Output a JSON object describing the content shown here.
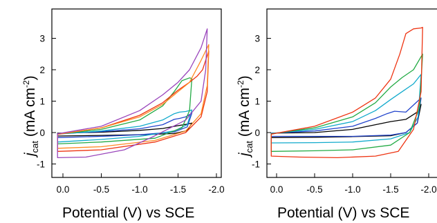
{
  "chart_data": [
    {
      "type": "line",
      "title": "",
      "xlabel": "Potential (V) vs SCE",
      "ylabel": {
        "main": "j",
        "subscript": "cat",
        "unit_open": " (mA cm",
        "unit_sup": "-2",
        "unit_close": ")"
      },
      "xlim": [
        0.0,
        -2.0
      ],
      "ylim": [
        -1.5,
        3.9
      ],
      "x_ticks": [
        "0.0",
        "-0.5",
        "-1.0",
        "-1.5",
        "-2.0"
      ],
      "x_tick_values": [
        0.0,
        -0.5,
        -1.0,
        -1.5,
        -2.0
      ],
      "y_ticks": [
        "3",
        "2",
        "1",
        "0",
        "-1"
      ],
      "y_tick_values": [
        3,
        2,
        1,
        0,
        -1
      ],
      "grid": false,
      "series": [
        {
          "color": "#000000",
          "switch": -1.68,
          "top": [
            [
              0.07,
              -0.02
            ],
            [
              -0.5,
              0.01
            ],
            [
              -1.0,
              0.07
            ],
            [
              -1.3,
              0.13
            ],
            [
              -1.5,
              0.22
            ],
            [
              -1.6,
              0.26
            ],
            [
              -1.68,
              0.3
            ]
          ],
          "bottom": [
            [
              -1.68,
              0.3
            ],
            [
              -1.62,
              0.06
            ],
            [
              -1.45,
              -0.03
            ],
            [
              -1.0,
              -0.07
            ],
            [
              -0.5,
              -0.09
            ],
            [
              0.07,
              -0.11
            ]
          ]
        },
        {
          "color": "#2244cc",
          "switch": -1.68,
          "top": [
            [
              0.07,
              -0.04
            ],
            [
              -0.5,
              0.03
            ],
            [
              -1.0,
              0.12
            ],
            [
              -1.3,
              0.25
            ],
            [
              -1.45,
              0.42
            ],
            [
              -1.52,
              0.45
            ],
            [
              -1.6,
              0.5
            ],
            [
              -1.68,
              0.62
            ]
          ],
          "bottom": [
            [
              -1.68,
              0.62
            ],
            [
              -1.62,
              0.18
            ],
            [
              -1.45,
              0.02
            ],
            [
              -1.0,
              -0.07
            ],
            [
              -0.5,
              -0.12
            ],
            [
              0.07,
              -0.16
            ]
          ]
        },
        {
          "color": "#11aacc",
          "switch": -1.68,
          "top": [
            [
              0.07,
              -0.05
            ],
            [
              -0.5,
              0.05
            ],
            [
              -1.0,
              0.2
            ],
            [
              -1.3,
              0.4
            ],
            [
              -1.45,
              0.6
            ],
            [
              -1.52,
              0.65
            ],
            [
              -1.6,
              0.67
            ],
            [
              -1.68,
              0.72
            ]
          ],
          "bottom": [
            [
              -1.68,
              0.72
            ],
            [
              -1.62,
              0.25
            ],
            [
              -1.45,
              0.05
            ],
            [
              -1.0,
              -0.12
            ],
            [
              -0.5,
              -0.22
            ],
            [
              0.07,
              -0.3
            ]
          ]
        },
        {
          "color": "#22aa44",
          "switch": -1.68,
          "top": [
            [
              0.07,
              -0.05
            ],
            [
              -0.5,
              0.1
            ],
            [
              -1.0,
              0.4
            ],
            [
              -1.3,
              0.85
            ],
            [
              -1.45,
              1.3
            ],
            [
              -1.55,
              1.65
            ],
            [
              -1.65,
              1.74
            ],
            [
              -1.68,
              1.72
            ]
          ],
          "bottom": [
            [
              -1.68,
              1.72
            ],
            [
              -1.65,
              0.7
            ],
            [
              -1.55,
              0.15
            ],
            [
              -1.2,
              -0.18
            ],
            [
              -0.5,
              -0.3
            ],
            [
              0.07,
              -0.36
            ]
          ]
        },
        {
          "color": "#ee3311",
          "switch": -1.91,
          "top": [
            [
              0.07,
              -0.06
            ],
            [
              -0.5,
              0.15
            ],
            [
              -1.0,
              0.55
            ],
            [
              -1.3,
              0.95
            ],
            [
              -1.5,
              1.35
            ],
            [
              -1.65,
              1.6
            ],
            [
              -1.75,
              1.8
            ],
            [
              -1.82,
              2.0
            ],
            [
              -1.9,
              2.6
            ]
          ],
          "bottom": [
            [
              -1.9,
              2.6
            ],
            [
              -1.88,
              1.3
            ],
            [
              -1.8,
              0.5
            ],
            [
              -1.6,
              0.0
            ],
            [
              -1.2,
              -0.3
            ],
            [
              -0.5,
              -0.55
            ],
            [
              0.07,
              -0.6
            ]
          ]
        },
        {
          "color": "#ff8a22",
          "switch": -1.91,
          "top": [
            [
              0.07,
              -0.05
            ],
            [
              -0.5,
              0.15
            ],
            [
              -1.0,
              0.5
            ],
            [
              -1.3,
              0.9
            ],
            [
              -1.5,
              1.3
            ],
            [
              -1.65,
              1.6
            ],
            [
              -1.8,
              2.3
            ],
            [
              -1.9,
              2.8
            ]
          ],
          "bottom": [
            [
              -1.9,
              2.8
            ],
            [
              -1.88,
              1.5
            ],
            [
              -1.8,
              0.6
            ],
            [
              -1.6,
              0.05
            ],
            [
              -1.2,
              -0.25
            ],
            [
              -0.5,
              -0.45
            ],
            [
              0.07,
              -0.5
            ]
          ]
        },
        {
          "color": "#9944bb",
          "switch": -1.9,
          "top": [
            [
              0.07,
              -0.04
            ],
            [
              -0.5,
              0.2
            ],
            [
              -1.0,
              0.7
            ],
            [
              -1.3,
              1.2
            ],
            [
              -1.5,
              1.6
            ],
            [
              -1.65,
              2.0
            ],
            [
              -1.8,
              2.7
            ],
            [
              -1.88,
              3.3
            ]
          ],
          "bottom": [
            [
              -1.88,
              3.3
            ],
            [
              -1.86,
              2.0
            ],
            [
              -1.8,
              1.0
            ],
            [
              -1.6,
              0.4
            ],
            [
              -1.2,
              -0.1
            ],
            [
              -0.8,
              -0.55
            ],
            [
              -0.3,
              -0.78
            ],
            [
              0.07,
              -0.8
            ]
          ]
        }
      ]
    },
    {
      "type": "line",
      "title": "",
      "xlabel": "Potential (V) vs SCE",
      "ylabel": {
        "main": "j",
        "subscript": "cat",
        "unit_open": " (mA cm",
        "unit_sup": "-2",
        "unit_close": ")"
      },
      "xlim": [
        0.0,
        -2.0
      ],
      "ylim": [
        -1.5,
        3.9
      ],
      "x_ticks": [
        "0.0",
        "-0.5",
        "-1.0",
        "-1.5",
        "-2.0"
      ],
      "x_tick_values": [
        0.0,
        -0.5,
        -1.0,
        -1.5,
        -2.0
      ],
      "y_ticks": [
        "3",
        "2",
        "1",
        "0",
        "-1"
      ],
      "y_tick_values": [
        3,
        2,
        1,
        0,
        -1
      ],
      "grid": false,
      "series": [
        {
          "color": "#000000",
          "switch": -1.9,
          "top": [
            [
              0.07,
              -0.02
            ],
            [
              -0.5,
              0.0
            ],
            [
              -1.0,
              0.1
            ],
            [
              -1.3,
              0.25
            ],
            [
              -1.5,
              0.35
            ],
            [
              -1.7,
              0.42
            ],
            [
              -1.88,
              0.7
            ],
            [
              -1.9,
              0.9
            ]
          ],
          "bottom": [
            [
              -1.9,
              0.9
            ],
            [
              -1.85,
              0.3
            ],
            [
              -1.7,
              0.0
            ],
            [
              -1.5,
              -0.1
            ],
            [
              -1.0,
              -0.13
            ],
            [
              -0.5,
              -0.15
            ],
            [
              0.07,
              -0.16
            ]
          ]
        },
        {
          "color": "#2244cc",
          "switch": -1.9,
          "top": [
            [
              0.07,
              -0.02
            ],
            [
              -0.5,
              0.05
            ],
            [
              -1.0,
              0.2
            ],
            [
              -1.3,
              0.45
            ],
            [
              -1.45,
              0.6
            ],
            [
              -1.55,
              0.68
            ],
            [
              -1.7,
              0.65
            ],
            [
              -1.9,
              1.1
            ]
          ],
          "bottom": [
            [
              -1.9,
              1.1
            ],
            [
              -1.85,
              0.3
            ],
            [
              -1.7,
              0.0
            ],
            [
              -1.5,
              -0.08
            ],
            [
              -1.0,
              -0.12
            ],
            [
              -0.5,
              -0.12
            ],
            [
              0.07,
              -0.12
            ]
          ]
        },
        {
          "color": "#11aacc",
          "switch": -1.9,
          "top": [
            [
              0.07,
              -0.03
            ],
            [
              -0.5,
              0.1
            ],
            [
              -1.0,
              0.35
            ],
            [
              -1.3,
              0.7
            ],
            [
              -1.5,
              1.05
            ],
            [
              -1.65,
              1.3
            ],
            [
              -1.8,
              1.55
            ],
            [
              -1.9,
              1.85
            ]
          ],
          "bottom": [
            [
              -1.9,
              1.85
            ],
            [
              -1.86,
              0.5
            ],
            [
              -1.75,
              0.0
            ],
            [
              -1.5,
              -0.2
            ],
            [
              -1.0,
              -0.3
            ],
            [
              -0.5,
              -0.32
            ],
            [
              0.07,
              -0.33
            ]
          ]
        },
        {
          "color": "#22aa44",
          "switch": -1.92,
          "top": [
            [
              0.07,
              -0.04
            ],
            [
              -0.5,
              0.15
            ],
            [
              -1.0,
              0.5
            ],
            [
              -1.3,
              0.95
            ],
            [
              -1.5,
              1.45
            ],
            [
              -1.65,
              1.75
            ],
            [
              -1.8,
              2.0
            ],
            [
              -1.92,
              2.5
            ]
          ],
          "bottom": [
            [
              -1.92,
              2.5
            ],
            [
              -1.88,
              0.8
            ],
            [
              -1.75,
              0.0
            ],
            [
              -1.5,
              -0.4
            ],
            [
              -1.0,
              -0.55
            ],
            [
              -0.5,
              -0.58
            ],
            [
              0.07,
              -0.6
            ]
          ]
        },
        {
          "color": "#ee3311",
          "switch": -1.92,
          "top": [
            [
              0.07,
              -0.05
            ],
            [
              -0.5,
              0.2
            ],
            [
              -1.0,
              0.65
            ],
            [
              -1.3,
              1.1
            ],
            [
              -1.5,
              1.7
            ],
            [
              -1.62,
              2.5
            ],
            [
              -1.7,
              3.15
            ],
            [
              -1.8,
              3.3
            ],
            [
              -1.9,
              3.33
            ],
            [
              -1.92,
              3.35
            ]
          ],
          "bottom": [
            [
              -1.92,
              3.35
            ],
            [
              -1.9,
              1.3
            ],
            [
              -1.8,
              0.1
            ],
            [
              -1.6,
              -0.6
            ],
            [
              -1.3,
              -0.75
            ],
            [
              -0.8,
              -0.8
            ],
            [
              -0.3,
              -0.78
            ],
            [
              0.07,
              -0.75
            ]
          ]
        }
      ]
    }
  ]
}
